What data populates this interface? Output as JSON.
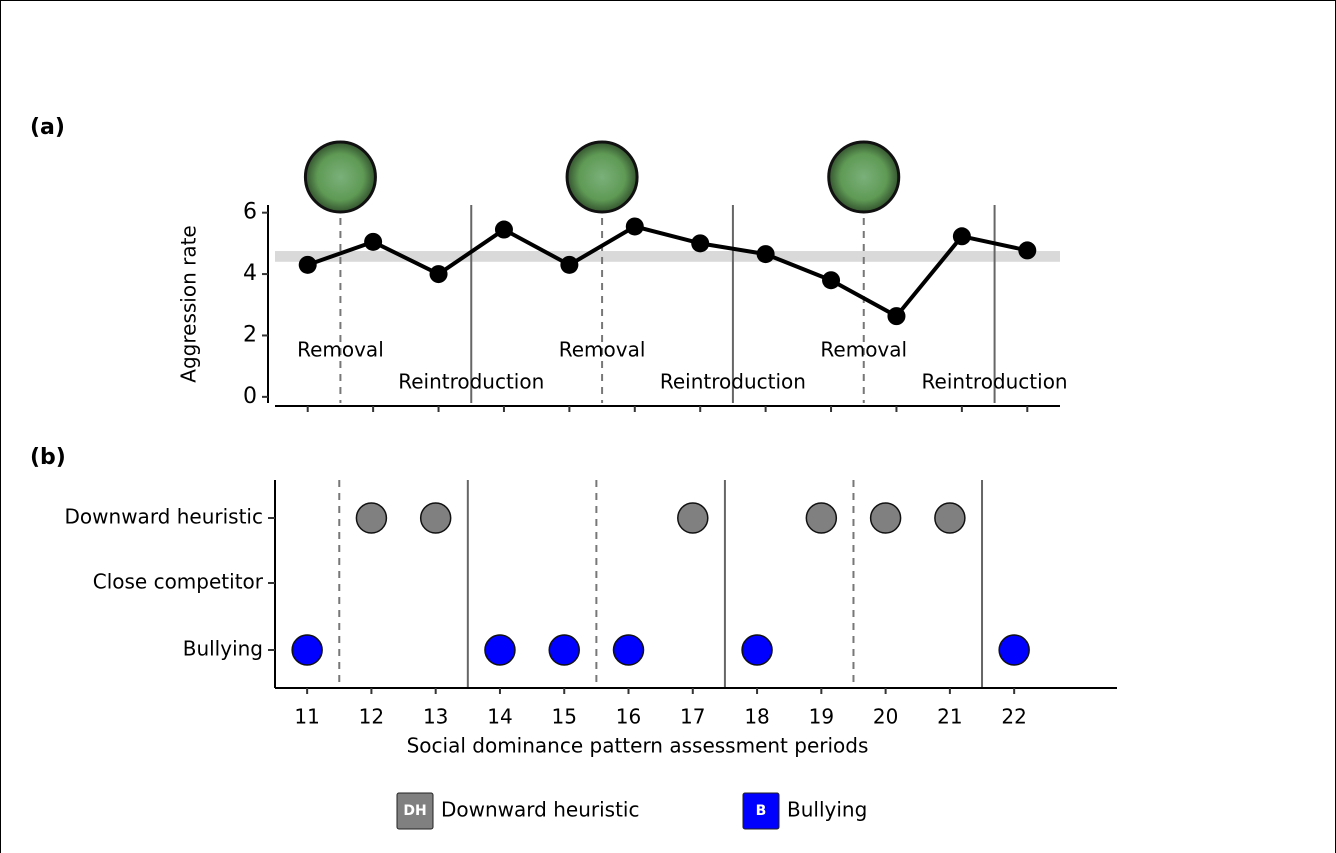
{
  "chart_data": [
    {
      "type": "line",
      "panel_label": "(a)",
      "ylabel": "Aggression rate",
      "x": [
        11,
        12,
        13,
        14,
        15,
        16,
        17,
        18,
        19,
        20,
        21,
        22
      ],
      "values": [
        4.3,
        5.05,
        4.0,
        5.45,
        4.3,
        5.55,
        5.0,
        4.65,
        3.8,
        2.63,
        5.23,
        4.77
      ],
      "color": "#000000",
      "xlim": [
        10.5,
        22.5
      ],
      "xticks": [
        11,
        12,
        13,
        14,
        15,
        16,
        17,
        18,
        19,
        20,
        21,
        22
      ],
      "xtick_labels": false,
      "ylim": [
        -0.2,
        6.25
      ],
      "yticks": [
        0,
        2,
        4,
        6
      ],
      "band": [
        4.4,
        4.75
      ],
      "band_color": "#d9d9d9",
      "vlines": [
        {
          "x": 11.5,
          "style": "dashed"
        },
        {
          "x": 13.5,
          "style": "solid"
        },
        {
          "x": 15.5,
          "style": "dashed"
        },
        {
          "x": 17.5,
          "style": "solid"
        },
        {
          "x": 19.5,
          "style": "dashed"
        },
        {
          "x": 21.5,
          "style": "solid"
        }
      ],
      "annotations": [
        "Removal",
        "Reintroduction",
        "Removal",
        "Reintroduction",
        "Removal",
        "Reintroduction"
      ]
    },
    {
      "type": "scatter",
      "panel_label": "(b)",
      "xlabel": "Social dominance pattern assessment periods",
      "categories": [
        "Downward heuristic",
        "Close competitor",
        "Bullying"
      ],
      "series": [
        {
          "name": "Downward heuristic",
          "symbol": "DH",
          "color": "#808080",
          "x": [
            12,
            13,
            17,
            19,
            20,
            21
          ]
        },
        {
          "name": "Bullying",
          "symbol": "B",
          "color": "#0000ff",
          "x": [
            11,
            14,
            15,
            16,
            18,
            22
          ]
        }
      ],
      "xlim": [
        10.5,
        23.6
      ],
      "xticks": [
        11,
        12,
        13,
        14,
        15,
        16,
        17,
        18,
        19,
        20,
        21,
        22
      ],
      "vlines": [
        {
          "x": 11.5,
          "style": "dashed"
        },
        {
          "x": 13.5,
          "style": "solid"
        },
        {
          "x": 15.5,
          "style": "dashed"
        },
        {
          "x": 17.5,
          "style": "solid"
        },
        {
          "x": 19.5,
          "style": "dashed"
        },
        {
          "x": 21.5,
          "style": "solid"
        }
      ]
    }
  ]
}
